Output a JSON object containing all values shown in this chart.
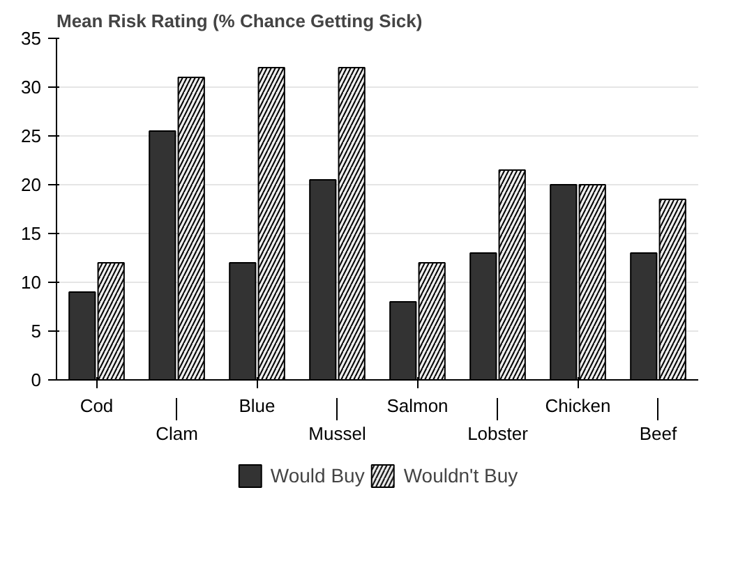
{
  "chart_data": {
    "type": "bar",
    "title": "Mean Risk Rating (% Chance Getting Sick)",
    "categories": [
      "Cod",
      "Clam",
      "Blue",
      "Mussel",
      "Salmon",
      "Lobster",
      "Chicken",
      "Beef"
    ],
    "series": [
      {
        "name": "Would Buy",
        "color": "#333333",
        "values": [
          9,
          25.5,
          12,
          20.5,
          8,
          13,
          20,
          13
        ]
      },
      {
        "name": "Wouldn't Buy",
        "color": "#eeeeee",
        "values": [
          12,
          31,
          32,
          32,
          12,
          21.5,
          20,
          18.5
        ]
      }
    ],
    "ylim": [
      0,
      35
    ],
    "yticks": [
      0,
      5,
      10,
      15,
      20,
      25,
      30,
      35
    ],
    "grid": "y",
    "legend": "bottom"
  }
}
